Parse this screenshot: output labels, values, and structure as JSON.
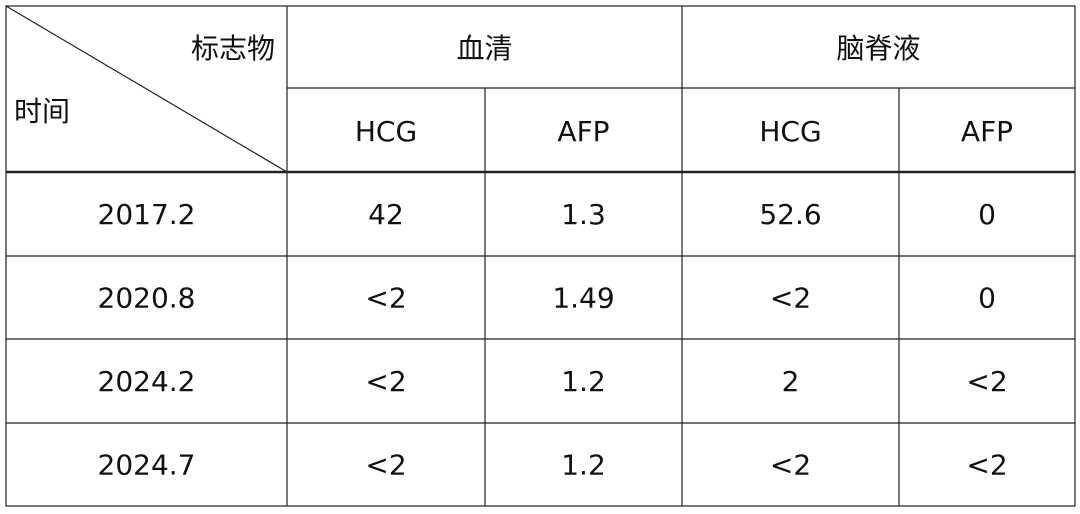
{
  "table": {
    "corner": {
      "top": "标志物",
      "bottom": "时间"
    },
    "groups": [
      "血清",
      "脑脊液"
    ],
    "subheaders": [
      "HCG",
      "AFP",
      "HCG",
      "AFP"
    ],
    "rows": [
      [
        "2017.2",
        "42",
        "1.3",
        "52.6",
        "0"
      ],
      [
        "2020.8",
        "<2",
        "1.49",
        "<2",
        "0"
      ],
      [
        "2024.2",
        "<2",
        "1.2",
        "2",
        "<2"
      ],
      [
        "2024.7",
        "<2",
        "1.2",
        "<2",
        "<2"
      ]
    ]
  }
}
